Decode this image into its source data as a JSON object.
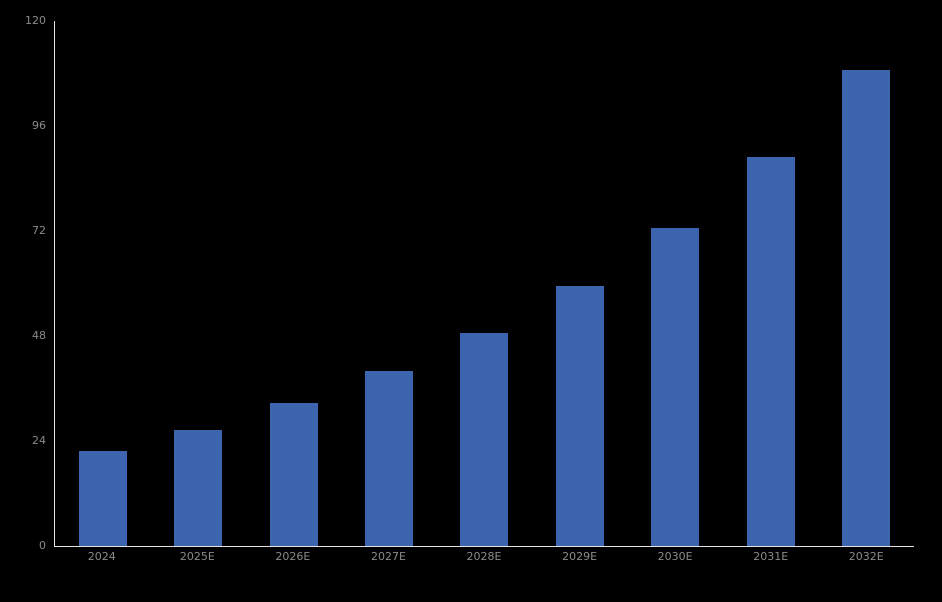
{
  "chart_data": {
    "type": "bar",
    "categories": [
      "2024",
      "2025E",
      "2026E",
      "2027E",
      "2028E",
      "2029E",
      "2030E",
      "2031E",
      "2032E"
    ],
    "values": [
      21.8,
      26.6,
      32.6,
      39.9,
      48.7,
      59.4,
      72.7,
      89.0,
      108.9
    ],
    "title": "",
    "xlabel": "",
    "ylabel": "",
    "ylim": [
      0,
      120
    ],
    "yticks": [
      0,
      24,
      48,
      72,
      96,
      120
    ],
    "grid": false,
    "legend": false,
    "bar_color": "#3D64AE",
    "axis_color": "#E4E4E4",
    "tick_label_color": "#8A8A8A",
    "background_color": "#000000"
  }
}
